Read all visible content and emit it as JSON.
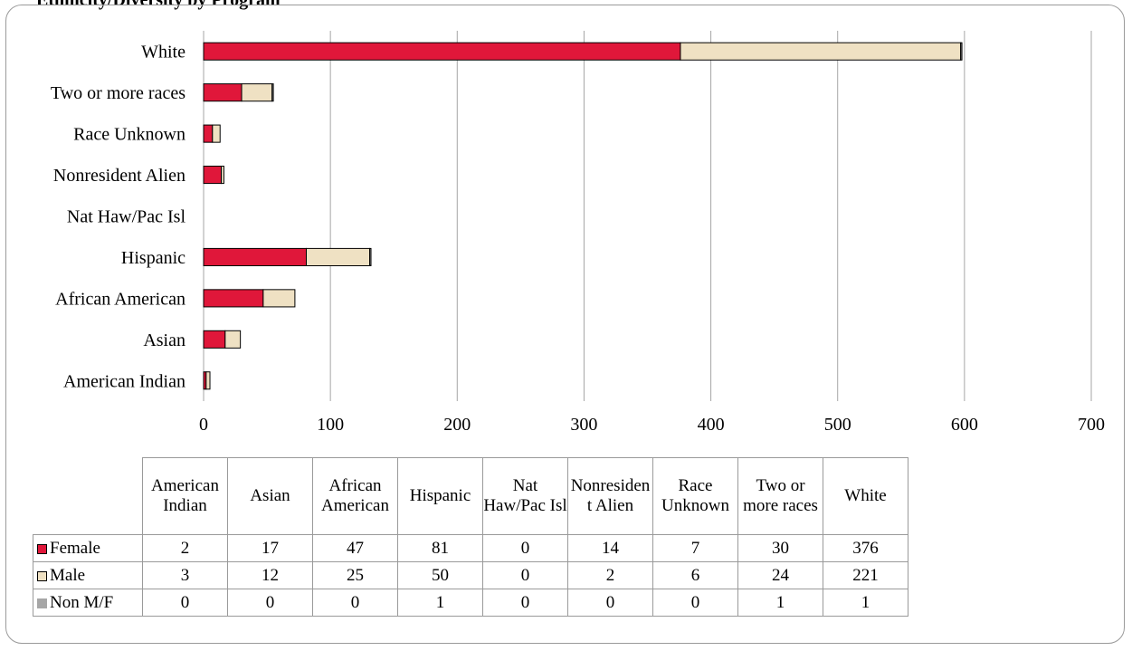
{
  "title": "Ethnicity/Diversity by Program",
  "chart_data": {
    "type": "bar",
    "orientation": "horizontal",
    "stacked": true,
    "categories": [
      "American Indian",
      "Asian",
      "African American",
      "Hispanic",
      "Nat Haw/Pac Isl",
      "Nonresident Alien",
      "Race Unknown",
      "Two or more races",
      "White"
    ],
    "table_headers": [
      "American Indian",
      "Asian",
      "African American",
      "Hispanic",
      "Nat Haw/Pac Isl",
      "Nonresiden t Alien",
      "Race Unknown",
      "Two or more races",
      "White"
    ],
    "series": [
      {
        "name": "Female",
        "color": "#e0173a",
        "values": [
          2,
          17,
          47,
          81,
          0,
          14,
          7,
          30,
          376
        ]
      },
      {
        "name": "Male",
        "color": "#efe1c3",
        "values": [
          3,
          12,
          25,
          50,
          0,
          2,
          6,
          24,
          221
        ]
      },
      {
        "name": "Non M/F",
        "color": "#a6a6a6",
        "values": [
          0,
          0,
          0,
          1,
          0,
          0,
          0,
          1,
          1
        ]
      }
    ],
    "xlim": [
      0,
      700
    ],
    "xticks": [
      0,
      100,
      200,
      300,
      400,
      500,
      600,
      700
    ],
    "grid": true,
    "legend": "data-table"
  }
}
